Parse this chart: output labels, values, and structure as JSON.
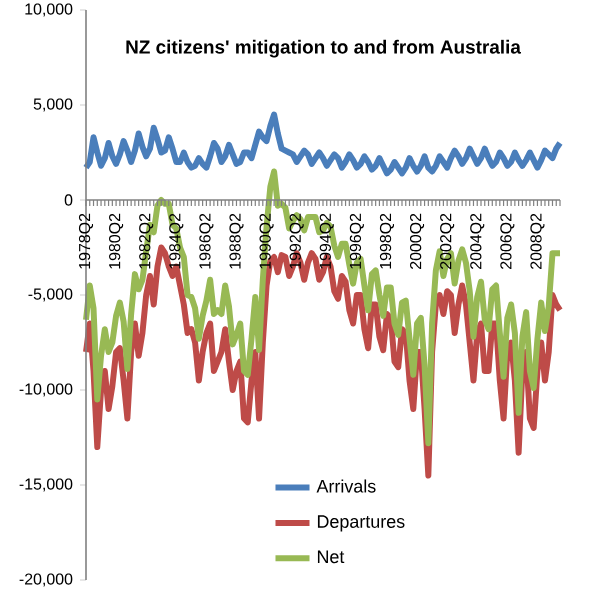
{
  "chart_data": {
    "type": "line",
    "title": "NZ citizens' mitigation to and from Australia",
    "categories": [
      "1978Q2",
      null,
      null,
      null,
      null,
      null,
      null,
      null,
      "1980Q2",
      null,
      null,
      null,
      null,
      null,
      null,
      null,
      "1982Q2",
      null,
      null,
      null,
      null,
      null,
      null,
      null,
      "1984Q2",
      null,
      null,
      null,
      null,
      null,
      null,
      null,
      "1986Q2",
      null,
      null,
      null,
      null,
      null,
      null,
      null,
      "1988Q2",
      null,
      null,
      null,
      null,
      null,
      null,
      null,
      "1990Q2",
      null,
      null,
      null,
      null,
      null,
      null,
      null,
      "1992Q2",
      null,
      null,
      null,
      null,
      null,
      null,
      null,
      "1994Q2",
      null,
      null,
      null,
      null,
      null,
      null,
      null,
      "1996Q2",
      null,
      null,
      null,
      null,
      null,
      null,
      null,
      "1998Q2",
      null,
      null,
      null,
      null,
      null,
      null,
      null,
      "2000Q2",
      null,
      null,
      null,
      null,
      null,
      null,
      null,
      "2002Q2",
      null,
      null,
      null,
      null,
      null,
      null,
      null,
      "2004Q2",
      null,
      null,
      null,
      null,
      null,
      null,
      null,
      "2006Q2",
      null,
      null,
      null,
      null,
      null,
      null,
      null,
      "2008Q2",
      null,
      null,
      null,
      null,
      null,
      null
    ],
    "series": [
      {
        "name": "Arrivals",
        "color": "#4a7ebb",
        "values": [
          1700,
          2000,
          3300,
          2500,
          1800,
          2200,
          3000,
          2300,
          1900,
          2400,
          3100,
          2600,
          2000,
          2600,
          3500,
          2800,
          2300,
          2700,
          3800,
          3200,
          2500,
          2600,
          3300,
          2700,
          2000,
          2000,
          2500,
          2000,
          1700,
          1800,
          2200,
          1900,
          1700,
          2300,
          3000,
          2700,
          2000,
          2300,
          2900,
          2400,
          1900,
          2000,
          2500,
          2500,
          2200,
          2900,
          3600,
          3300,
          3100,
          3900,
          4500,
          3500,
          2700,
          2600,
          2500,
          2400,
          2000,
          2300,
          2600,
          2400,
          1900,
          2200,
          2500,
          2200,
          1800,
          2100,
          2400,
          2200,
          1700,
          2000,
          2400,
          2100,
          1700,
          1900,
          2300,
          2000,
          1600,
          1800,
          2200,
          1800,
          1400,
          1600,
          2000,
          1700,
          1400,
          1700,
          2200,
          1800,
          1500,
          1800,
          2300,
          1700,
          1500,
          1800,
          2300,
          2000,
          1700,
          2200,
          2600,
          2300,
          1900,
          2200,
          2700,
          2300,
          1900,
          2200,
          2700,
          2200,
          1800,
          2000,
          2500,
          2200,
          1800,
          2000,
          2500,
          2100,
          1800,
          2100,
          2500,
          2100,
          1700,
          2100,
          2600,
          2400,
          2200,
          2700,
          3000
        ]
      },
      {
        "name": "Departures",
        "color": "#be4b48",
        "values": [
          -8000,
          -6500,
          -9000,
          -13000,
          -10000,
          -9000,
          -11000,
          -9800,
          -8000,
          -7800,
          -9500,
          -11500,
          -8000,
          -6500,
          -8200,
          -7000,
          -5000,
          -4000,
          -5500,
          -3500,
          -2500,
          -2800,
          -3500,
          -4000,
          -3500,
          -4500,
          -5500,
          -7000,
          -6800,
          -7500,
          -9500,
          -8000,
          -7000,
          -6500,
          -9000,
          -8500,
          -8000,
          -6800,
          -8500,
          -10000,
          -9000,
          -8500,
          -11500,
          -11700,
          -9500,
          -8000,
          -11500,
          -7500,
          -4500,
          -3200,
          -3000,
          -3800,
          -2900,
          -3000,
          -4000,
          -3500,
          -2800,
          -3300,
          -4200,
          -3300,
          -2800,
          -3100,
          -4200,
          -3800,
          -3000,
          -3500,
          -4800,
          -5200,
          -4000,
          -4300,
          -5800,
          -6500,
          -5000,
          -5000,
          -6800,
          -7800,
          -5500,
          -5500,
          -7200,
          -7900,
          -6000,
          -6200,
          -8500,
          -8800,
          -6800,
          -7000,
          -9500,
          -11000,
          -8000,
          -8000,
          -11000,
          -14500,
          -8000,
          -5500,
          -5000,
          -6000,
          -4800,
          -5000,
          -7000,
          -5500,
          -4500,
          -5500,
          -7500,
          -9500,
          -7000,
          -6500,
          -9000,
          -9000,
          -6500,
          -6500,
          -9500,
          -11500,
          -8000,
          -7500,
          -9500,
          -13300,
          -9000,
          -8000,
          -11500,
          -12000,
          -9000,
          -7500,
          -9500,
          -8000,
          -5000,
          -5500,
          -5800
        ]
      },
      {
        "name": "Net",
        "color": "#98b954",
        "values": [
          -6300,
          -4500,
          -5700,
          -10500,
          -8200,
          -6800,
          -8000,
          -7500,
          -6100,
          -5400,
          -6400,
          -8900,
          -6000,
          -3900,
          -4700,
          -4200,
          -2700,
          -1300,
          -1700,
          -300,
          0,
          -200,
          -200,
          -1300,
          -1500,
          -2500,
          -3000,
          -5000,
          -5100,
          -5700,
          -7300,
          -6100,
          -5300,
          -4200,
          -6000,
          -5800,
          -6000,
          -4500,
          -5600,
          -7600,
          -7100,
          -6500,
          -9000,
          -9200,
          -7300,
          -5100,
          -7900,
          -4200,
          -1400,
          700,
          1500,
          -300,
          -200,
          -400,
          -1500,
          -1100,
          -800,
          -1000,
          -1600,
          -900,
          -900,
          -900,
          -1700,
          -1600,
          -1200,
          -1400,
          -2400,
          -3000,
          -2300,
          -2300,
          -3400,
          -4400,
          -3300,
          -3100,
          -4500,
          -5800,
          -3900,
          -3700,
          -5000,
          -6100,
          -4600,
          -4600,
          -6500,
          -7100,
          -5400,
          -5300,
          -7300,
          -9200,
          -6500,
          -6200,
          -8700,
          -12800,
          -6500,
          -3700,
          -2700,
          -4000,
          -3100,
          -2800,
          -4400,
          -3200,
          -2600,
          -3300,
          -4800,
          -7200,
          -5100,
          -4300,
          -6300,
          -6800,
          -4700,
          -4500,
          -7000,
          -9300,
          -6200,
          -5500,
          -7000,
          -11200,
          -7200,
          -5900,
          -9000,
          -9900,
          -7300,
          -5400,
          -6900,
          -5600,
          -2800,
          -2800,
          -2800
        ]
      }
    ],
    "ylim": [
      -20000,
      10000
    ],
    "yticks": [
      {
        "value": -20000,
        "label": "-20,000"
      },
      {
        "value": -15000,
        "label": "-15,000"
      },
      {
        "value": -10000,
        "label": "-10,000"
      },
      {
        "value": -5000,
        "label": "-5,000"
      },
      {
        "value": 0,
        "label": "0"
      },
      {
        "value": 5000,
        "label": "5,000"
      },
      {
        "value": 10000,
        "label": "10,000"
      }
    ],
    "legend": "bottom"
  }
}
